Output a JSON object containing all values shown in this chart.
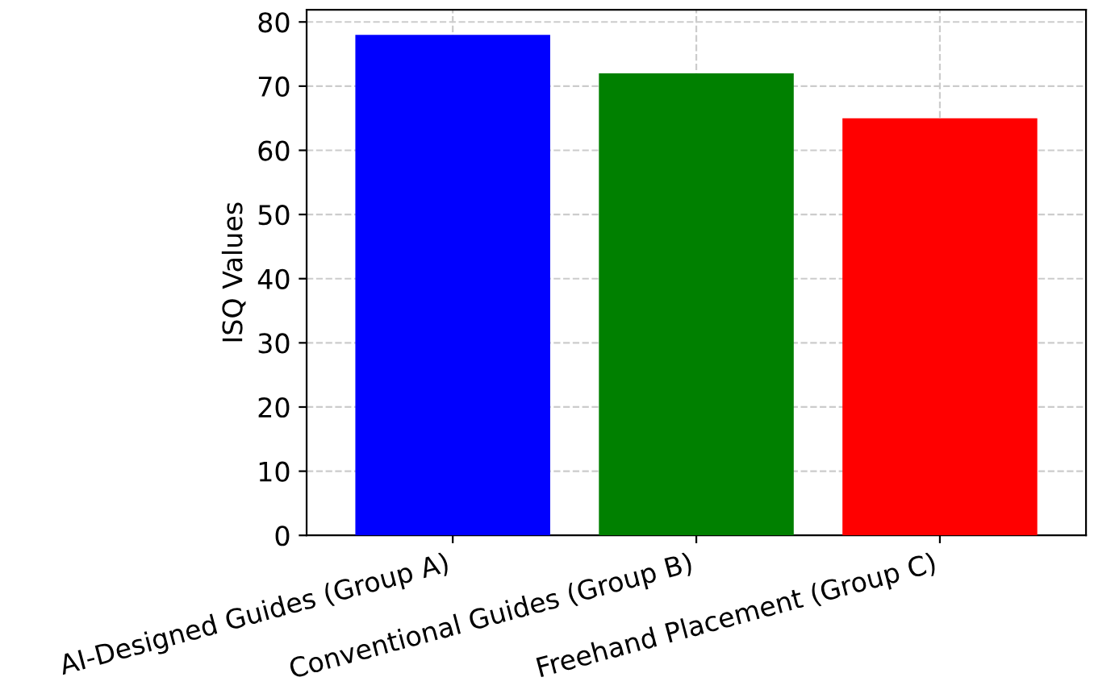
{
  "chart_data": {
    "type": "bar",
    "ylabel": "ISQ Values",
    "categories": [
      "AI-Designed Guides (Group A)",
      "Conventional Guides (Group B)",
      "Freehand Placement (Group C)"
    ],
    "values": [
      78,
      72,
      65
    ],
    "colors": [
      "#0000ff",
      "#008000",
      "#ff0000"
    ],
    "ylim": [
      0,
      81.9
    ],
    "yticks": [
      0,
      10,
      20,
      30,
      40,
      50,
      60,
      70,
      80
    ],
    "grid": true
  }
}
